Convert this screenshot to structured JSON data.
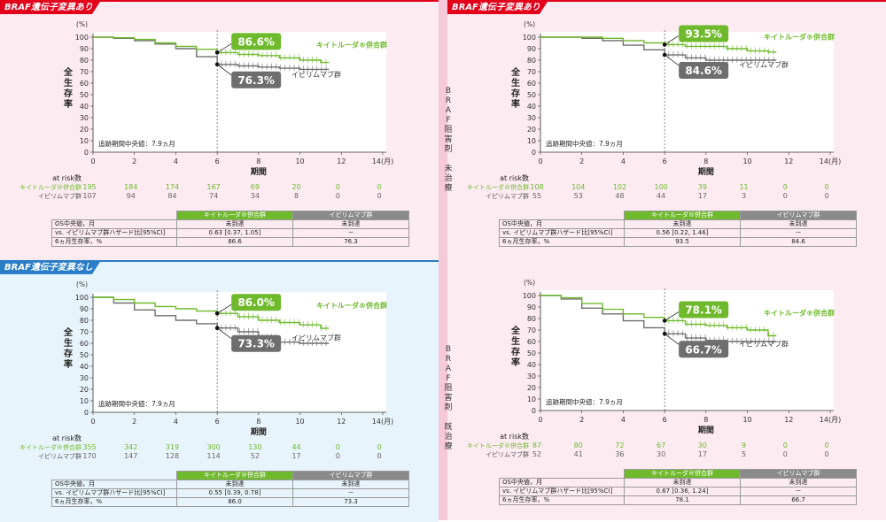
{
  "colors": {
    "keytruda": "#6fba2c",
    "ipilimumab": "#6e6e6e",
    "red": "#e2001a",
    "blue": "#2a7dc7"
  },
  "side_labels": {
    "untreated": "BRAF阻害剤 未治療",
    "treated": "BRAF阻害剤 既治療"
  },
  "table_labels": {
    "header_k": "キイトルーダ®併合群",
    "header_i": "イピリムマブ群",
    "row1": "OS中央値，月",
    "row2": "vs. イピリムマブ群ハザード比[95%CI]",
    "row3": "6ヵ月生存率，%"
  },
  "panels": [
    {
      "tag": "BRAF遺伝子変異あり",
      "ylabel": "全生存率",
      "ylabel_unit": "(%)",
      "xlabel": "期間",
      "median_follow": "追跡期間中央値：7.9ヵ月",
      "at_risk_title": "at risk数",
      "series_k": "キイトルーダ®併合群",
      "series_i": "イピリムマブ群",
      "callout_k": "86.6%",
      "callout_i": "76.3%",
      "at_risk_k": [
        "195",
        "184",
        "174",
        "167",
        "69",
        "20",
        "0",
        "0"
      ],
      "at_risk_i": [
        "107",
        "94",
        "84",
        "74",
        "34",
        "8",
        "0",
        "0"
      ],
      "table": {
        "k1": "未到達",
        "i1": "未到達",
        "k2": "0.63 [0.37, 1.05]",
        "i2": "－",
        "k3": "86.6",
        "i3": "76.3"
      }
    },
    {
      "tag": "BRAF遺伝子変異あり",
      "ylabel": "全生存率",
      "ylabel_unit": "(%)",
      "xlabel": "期間",
      "median_follow": "追跡期間中央値：7.9ヵ月",
      "at_risk_title": "at risk数",
      "series_k": "キイトルーダ®併合群",
      "series_i": "イピリムマブ群",
      "callout_k": "93.5%",
      "callout_i": "84.6%",
      "at_risk_k": [
        "108",
        "104",
        "102",
        "100",
        "39",
        "11",
        "0",
        "0"
      ],
      "at_risk_i": [
        "55",
        "53",
        "48",
        "44",
        "17",
        "3",
        "0",
        "0"
      ],
      "table": {
        "k1": "未到達",
        "i1": "未到達",
        "k2": "0.56 [0.22, 1.46]",
        "i2": "－",
        "k3": "93.5",
        "i3": "84.6"
      }
    },
    {
      "tag": "BRAF遺伝子変異なし",
      "ylabel": "全生存率",
      "ylabel_unit": "(%)",
      "xlabel": "期間",
      "median_follow": "追跡期間中央値：7.9ヵ月",
      "at_risk_title": "at risk数",
      "series_k": "キイトルーダ®併合群",
      "series_i": "イピリムマブ群",
      "callout_k": "86.0%",
      "callout_i": "73.3%",
      "at_risk_k": [
        "355",
        "342",
        "319",
        "300",
        "130",
        "44",
        "0",
        "0"
      ],
      "at_risk_i": [
        "170",
        "147",
        "128",
        "114",
        "52",
        "17",
        "0",
        "0"
      ],
      "table": {
        "k1": "未到達",
        "i1": "未到達",
        "k2": "0.55 [0.39, 0.78]",
        "i2": "－",
        "k3": "86.0",
        "i3": "73.3"
      }
    },
    {
      "tag": "",
      "ylabel": "全生存率",
      "ylabel_unit": "(%)",
      "xlabel": "期間",
      "median_follow": "追跡期間中央値：7.9ヵ月",
      "at_risk_title": "at risk数",
      "series_k": "キイトルーダ®併合群",
      "series_i": "イピリムマブ群",
      "callout_k": "78.1%",
      "callout_i": "66.7%",
      "at_risk_k": [
        "87",
        "80",
        "72",
        "67",
        "30",
        "9",
        "0",
        "0"
      ],
      "at_risk_i": [
        "52",
        "41",
        "36",
        "30",
        "17",
        "5",
        "0",
        "0"
      ],
      "table": {
        "k1": "未到達",
        "i1": "未到達",
        "k2": "0.67 [0.36, 1.24]",
        "i2": "－",
        "k3": "78.1",
        "i3": "66.7"
      }
    }
  ],
  "chart_data": [
    {
      "type": "line",
      "x_ticks": [
        "0",
        "2",
        "4",
        "6",
        "8",
        "10",
        "12",
        "14"
      ],
      "x_unit": "(月)",
      "y_ticks": [
        "0",
        "10",
        "20",
        "30",
        "40",
        "50",
        "60",
        "70",
        "80",
        "90",
        "100"
      ],
      "xlim": [
        0,
        14
      ],
      "ylim": [
        0,
        100
      ],
      "marker_x": 6,
      "series": [
        {
          "name": "キイトルーダ®併合群",
          "points": [
            [
              0,
              100
            ],
            [
              1,
              99.5
            ],
            [
              2,
              98
            ],
            [
              3,
              95
            ],
            [
              4,
              92
            ],
            [
              5,
              89.5
            ],
            [
              6,
              86.6
            ],
            [
              7,
              85
            ],
            [
              8,
              84
            ],
            [
              9,
              82
            ],
            [
              10,
              80
            ],
            [
              11,
              78
            ],
            [
              11.4,
              78
            ]
          ]
        },
        {
          "name": "イピリムマブ群",
          "points": [
            [
              0,
              100
            ],
            [
              1,
              99
            ],
            [
              2,
              97
            ],
            [
              3,
              94
            ],
            [
              4,
              90
            ],
            [
              5,
              83
            ],
            [
              6,
              76.3
            ],
            [
              7,
              75
            ],
            [
              8,
              74
            ],
            [
              9,
              73
            ],
            [
              10,
              72
            ],
            [
              11,
              72
            ],
            [
              11.4,
              72
            ]
          ]
        }
      ]
    },
    {
      "type": "line",
      "x_ticks": [
        "0",
        "2",
        "4",
        "6",
        "8",
        "10",
        "12",
        "14"
      ],
      "x_unit": "(月)",
      "y_ticks": [
        "0",
        "10",
        "20",
        "30",
        "40",
        "50",
        "60",
        "70",
        "80",
        "90",
        "100"
      ],
      "xlim": [
        0,
        14
      ],
      "ylim": [
        0,
        100
      ],
      "marker_x": 6,
      "series": [
        {
          "name": "キイトルーダ®併合群",
          "points": [
            [
              0,
              100
            ],
            [
              2,
              100
            ],
            [
              3,
              99
            ],
            [
              4,
              97
            ],
            [
              5,
              95
            ],
            [
              6,
              93.5
            ],
            [
              7,
              92
            ],
            [
              8,
              92
            ],
            [
              9,
              90
            ],
            [
              10,
              88
            ],
            [
              11,
              87
            ],
            [
              11.4,
              87
            ]
          ]
        },
        {
          "name": "イピリムマブ群",
          "points": [
            [
              0,
              100
            ],
            [
              2,
              99
            ],
            [
              3,
              97
            ],
            [
              4,
              93
            ],
            [
              5,
              89
            ],
            [
              6,
              84.6
            ],
            [
              7,
              82
            ],
            [
              8,
              80
            ],
            [
              9,
              80
            ],
            [
              10,
              80
            ],
            [
              11,
              80
            ],
            [
              11.4,
              80
            ]
          ]
        }
      ]
    },
    {
      "type": "line",
      "x_ticks": [
        "0",
        "2",
        "4",
        "6",
        "8",
        "10",
        "12",
        "14"
      ],
      "x_unit": "(月)",
      "y_ticks": [
        "0",
        "10",
        "20",
        "30",
        "40",
        "50",
        "60",
        "70",
        "80",
        "90",
        "100"
      ],
      "xlim": [
        0,
        14
      ],
      "ylim": [
        0,
        100
      ],
      "marker_x": 6,
      "series": [
        {
          "name": "キイトルーダ®併合群",
          "points": [
            [
              0,
              100
            ],
            [
              1,
              98
            ],
            [
              2,
              95
            ],
            [
              3,
              92
            ],
            [
              4,
              90
            ],
            [
              5,
              88
            ],
            [
              6,
              86.0
            ],
            [
              7,
              83
            ],
            [
              8,
              80
            ],
            [
              9,
              78
            ],
            [
              10,
              76
            ],
            [
              11,
              73
            ],
            [
              11.4,
              73
            ]
          ]
        },
        {
          "name": "イピリムマブ群",
          "points": [
            [
              0,
              100
            ],
            [
              1,
              95
            ],
            [
              2,
              89
            ],
            [
              3,
              84
            ],
            [
              4,
              80
            ],
            [
              5,
              77
            ],
            [
              6,
              73.3
            ],
            [
              7,
              70
            ],
            [
              8,
              65
            ],
            [
              9,
              61
            ],
            [
              10,
              60
            ],
            [
              11,
              60
            ],
            [
              11.4,
              60
            ]
          ]
        }
      ]
    },
    {
      "type": "line",
      "x_ticks": [
        "0",
        "2",
        "4",
        "6",
        "8",
        "10",
        "12",
        "14"
      ],
      "x_unit": "(月)",
      "y_ticks": [
        "0",
        "10",
        "20",
        "30",
        "40",
        "50",
        "60",
        "70",
        "80",
        "90",
        "100"
      ],
      "xlim": [
        0,
        14
      ],
      "ylim": [
        0,
        100
      ],
      "marker_x": 6,
      "series": [
        {
          "name": "キイトルーダ®併合群",
          "points": [
            [
              0,
              100
            ],
            [
              1,
              98
            ],
            [
              2,
              93
            ],
            [
              3,
              88
            ],
            [
              4,
              84
            ],
            [
              5,
              81
            ],
            [
              6,
              78.1
            ],
            [
              7,
              75
            ],
            [
              8,
              74
            ],
            [
              9,
              72
            ],
            [
              10,
              70
            ],
            [
              11,
              65
            ],
            [
              11.4,
              65
            ]
          ]
        },
        {
          "name": "イピリムマブ群",
          "points": [
            [
              0,
              100
            ],
            [
              1,
              97
            ],
            [
              2,
              89
            ],
            [
              3,
              84
            ],
            [
              4,
              78
            ],
            [
              5,
              72
            ],
            [
              6,
              66.7
            ],
            [
              7,
              63
            ],
            [
              8,
              61
            ],
            [
              9,
              60
            ],
            [
              10,
              60
            ],
            [
              11,
              60
            ],
            [
              11.4,
              60
            ]
          ]
        }
      ]
    }
  ]
}
